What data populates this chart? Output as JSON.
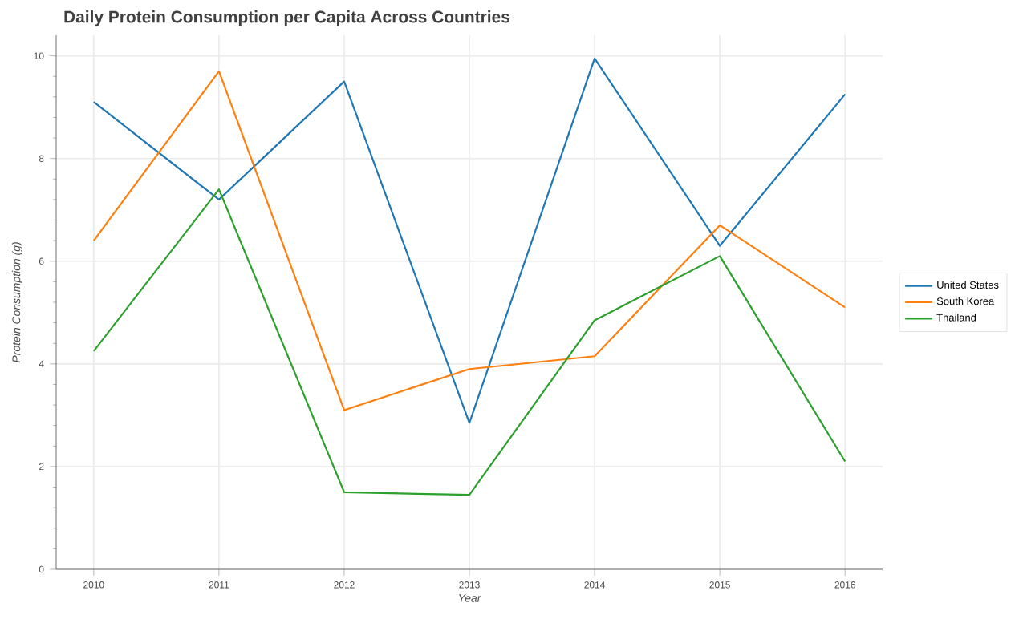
{
  "chart_data": {
    "type": "line",
    "title": "Daily Protein Consumption per Capita Across Countries",
    "xlabel": "Year",
    "ylabel": "Protein Consumption (g)",
    "x": [
      2010,
      2011,
      2012,
      2013,
      2014,
      2015,
      2016
    ],
    "series": [
      {
        "name": "United States",
        "color": "#1f77b4",
        "values": [
          9.1,
          7.2,
          9.5,
          2.85,
          9.95,
          6.3,
          9.25
        ]
      },
      {
        "name": "South Korea",
        "color": "#ff7f0e",
        "values": [
          6.4,
          9.7,
          3.1,
          3.9,
          4.15,
          6.7,
          5.1
        ]
      },
      {
        "name": "Thailand",
        "color": "#2ca02c",
        "values": [
          4.25,
          7.4,
          1.5,
          1.45,
          4.85,
          6.1,
          2.1
        ]
      }
    ],
    "xlim": [
      2009.7,
      2016.3
    ],
    "ylim": [
      0,
      10.4
    ],
    "xticks": [
      2010,
      2011,
      2012,
      2013,
      2014,
      2015,
      2016
    ],
    "yticks": [
      0,
      2,
      4,
      6,
      8,
      10
    ],
    "grid": true,
    "legend": "right",
    "marker": "none",
    "line_style": "solid"
  }
}
